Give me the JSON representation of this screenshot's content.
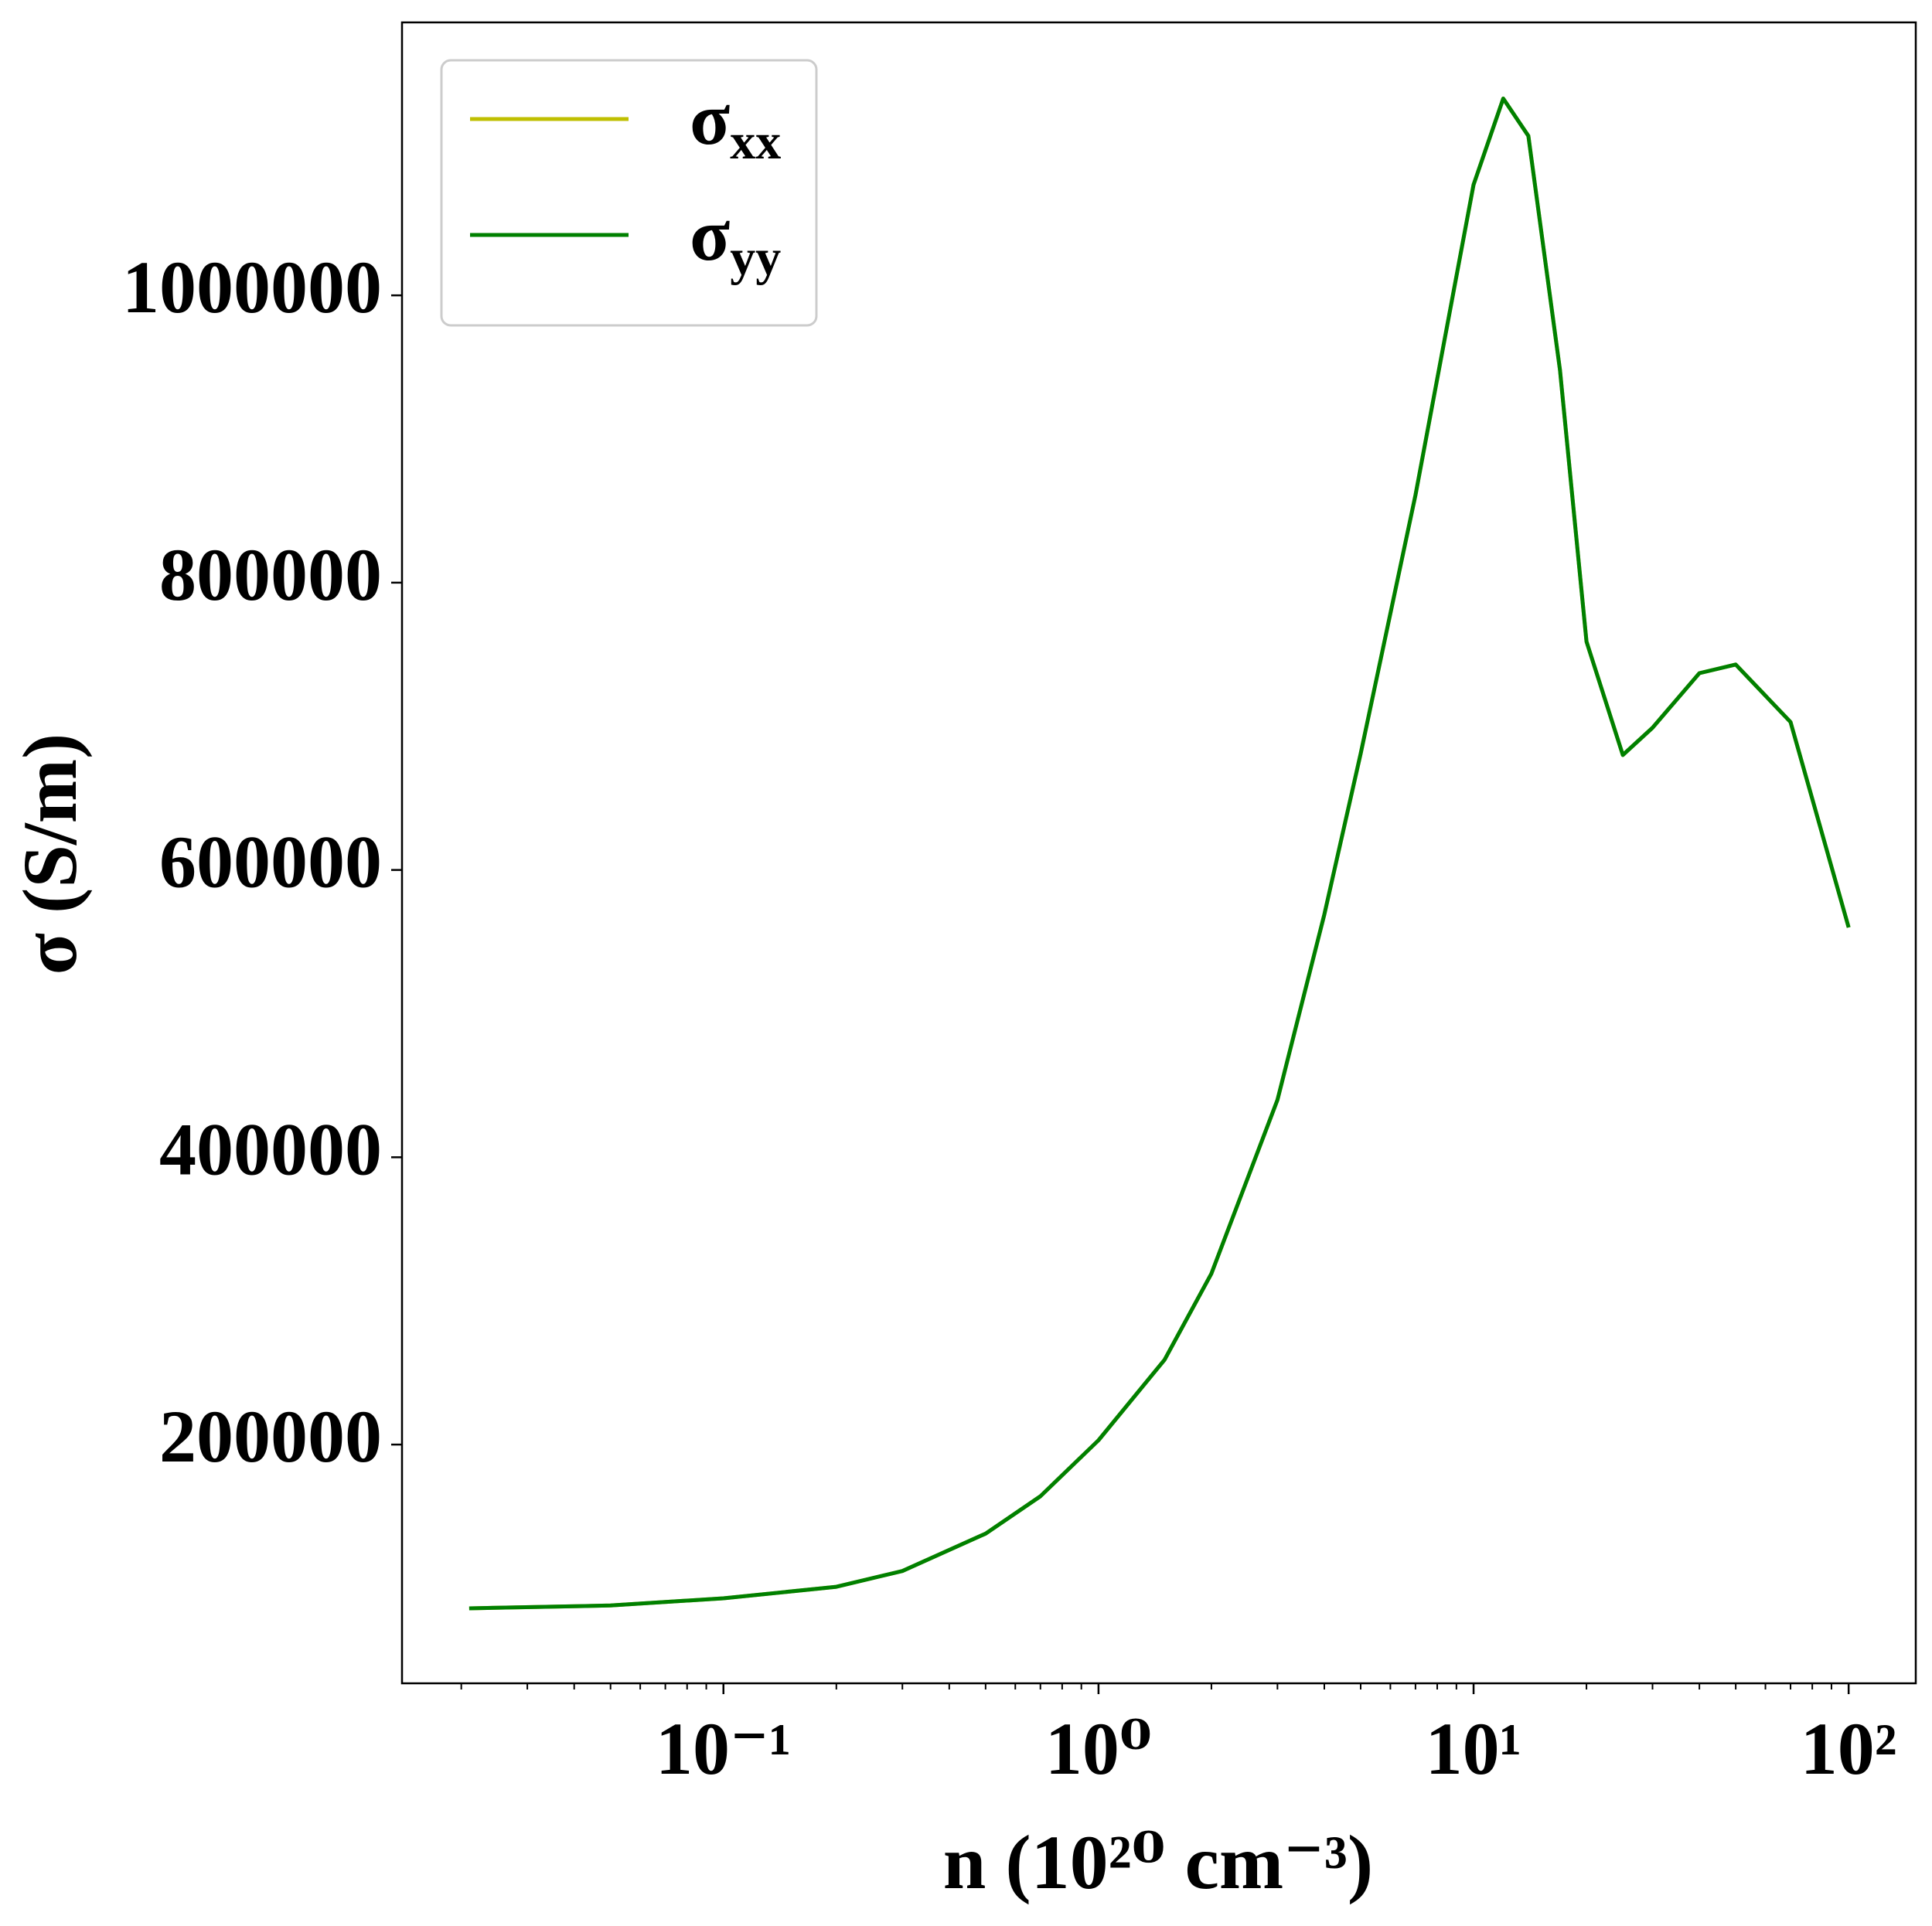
{
  "chart_data": {
    "type": "line",
    "xlabel": "n (10²⁰ cm⁻³)",
    "ylabel": "σ (S/m)",
    "x": [
      0.021,
      0.05,
      0.1,
      0.2,
      0.3,
      0.5,
      0.7,
      1,
      1.5,
      2,
      3,
      4,
      5,
      7,
      10,
      12,
      14,
      17,
      20,
      25,
      30,
      40,
      50,
      70,
      100
    ],
    "series": [
      {
        "name": "σxx",
        "color": "#bfbf00",
        "values": [
          86000,
          88000,
          93000,
          101000,
          112000,
          138000,
          164000,
          203000,
          259000,
          319000,
          440000,
          569000,
          681000,
          861000,
          1077000,
          1137000,
          1111000,
          948000,
          759000,
          680000,
          699000,
          737000,
          743000,
          703000,
          560000
        ]
      },
      {
        "name": "σyy",
        "color": "#008000",
        "values": [
          86000,
          88000,
          93000,
          101000,
          112000,
          138000,
          164000,
          203000,
          259000,
          319000,
          440000,
          569000,
          681000,
          861000,
          1077000,
          1137000,
          1111000,
          948000,
          759000,
          680000,
          699000,
          737000,
          743000,
          703000,
          560000
        ]
      }
    ],
    "xscale": "log",
    "xlim": [
      0.0139,
      151
    ],
    "xticks": [
      {
        "value": 0.1,
        "label": "10⁻¹"
      },
      {
        "value": 1,
        "label": "10⁰"
      },
      {
        "value": 10,
        "label": "10¹"
      },
      {
        "value": 100,
        "label": "10²"
      }
    ],
    "xminorticks": [
      0.02,
      0.03,
      0.04,
      0.05,
      0.06,
      0.07,
      0.08,
      0.09,
      0.2,
      0.3,
      0.4,
      0.5,
      0.6,
      0.7,
      0.8,
      0.9,
      2,
      3,
      4,
      5,
      6,
      7,
      8,
      9,
      20,
      30,
      40,
      50,
      60,
      70,
      80,
      90
    ],
    "ylim": [
      33800,
      1190000
    ],
    "yticks": [
      200000,
      400000,
      600000,
      800000,
      1000000
    ],
    "legend": "upper left"
  }
}
